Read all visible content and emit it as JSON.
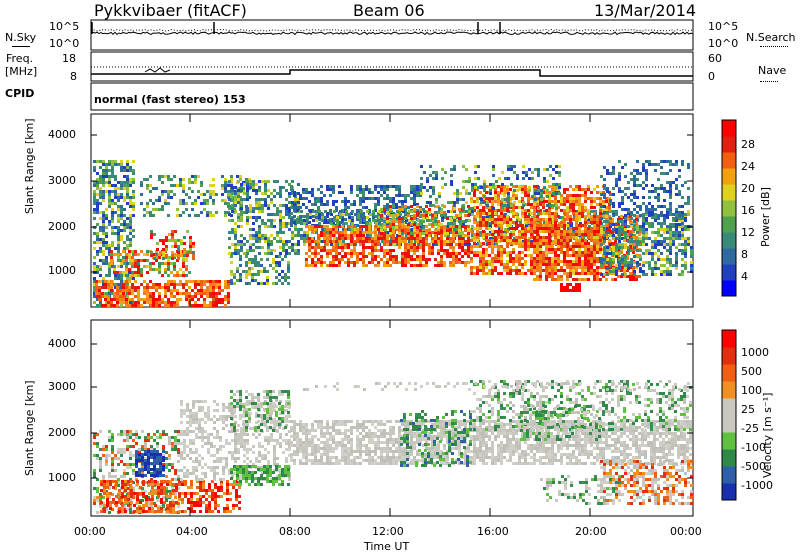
{
  "header": {
    "station": "Pykkvibaer (fitACF)",
    "beam": "Beam 06",
    "date": "13/Mar/2014"
  },
  "top_panel": {
    "left_label": "N.Sky",
    "left_ticks": [
      "10^5",
      "10^0"
    ],
    "right_label": "N.Search",
    "right_ticks": [
      "10^5",
      "10^0"
    ]
  },
  "freq_panel": {
    "left_label_1": "Freq.",
    "left_label_2": "[MHz]",
    "left_ticks": [
      "18",
      "8"
    ],
    "right_label": "Nave",
    "right_ticks": [
      "60",
      "0"
    ]
  },
  "cpid": {
    "label": "CPID",
    "mode": "normal (fast stereo) 153"
  },
  "chart_data": [
    {
      "type": "heatmap",
      "variable": "Power",
      "ylabel": "Slant Range [km]",
      "yticks": [
        "4000",
        "3000",
        "2000",
        "1000"
      ],
      "ylim": [
        180,
        4500
      ],
      "xlim": [
        "00:00",
        "24:00"
      ],
      "colorbar_label": "Power [dB]",
      "colorbar_ticks": [
        "28",
        "24",
        "20",
        "16",
        "12",
        "8",
        "4"
      ],
      "colorbar_colors": [
        "#0000ff",
        "#2040c0",
        "#2e6aa0",
        "#3a8a7a",
        "#50a050",
        "#90c040",
        "#e0d020",
        "#f0a010",
        "#f06010",
        "#e02010",
        "#ff0000"
      ]
    },
    {
      "type": "heatmap",
      "variable": "Velocity",
      "ylabel": "Slant Range [km]",
      "yticks": [
        "4000",
        "3000",
        "2000",
        "1000"
      ],
      "ylim": [
        180,
        4500
      ],
      "xlabel": "Time UT",
      "xticks": [
        "00:00",
        "04:00",
        "08:00",
        "12:00",
        "16:00",
        "20:00",
        "00:00"
      ],
      "colorbar_label": "Velocity [m s⁻¹]",
      "colorbar_ticks": [
        "1000",
        "500",
        "100",
        "25",
        "-25",
        "-100",
        "-500",
        "-1000"
      ],
      "colorbar_colors": [
        "#1830b0",
        "#2f5fa8",
        "#2f8a4a",
        "#60c040",
        "#c8c8c0",
        "#c8c8c0",
        "#f09020",
        "#f06010",
        "#e03010",
        "#ff0000"
      ]
    }
  ]
}
